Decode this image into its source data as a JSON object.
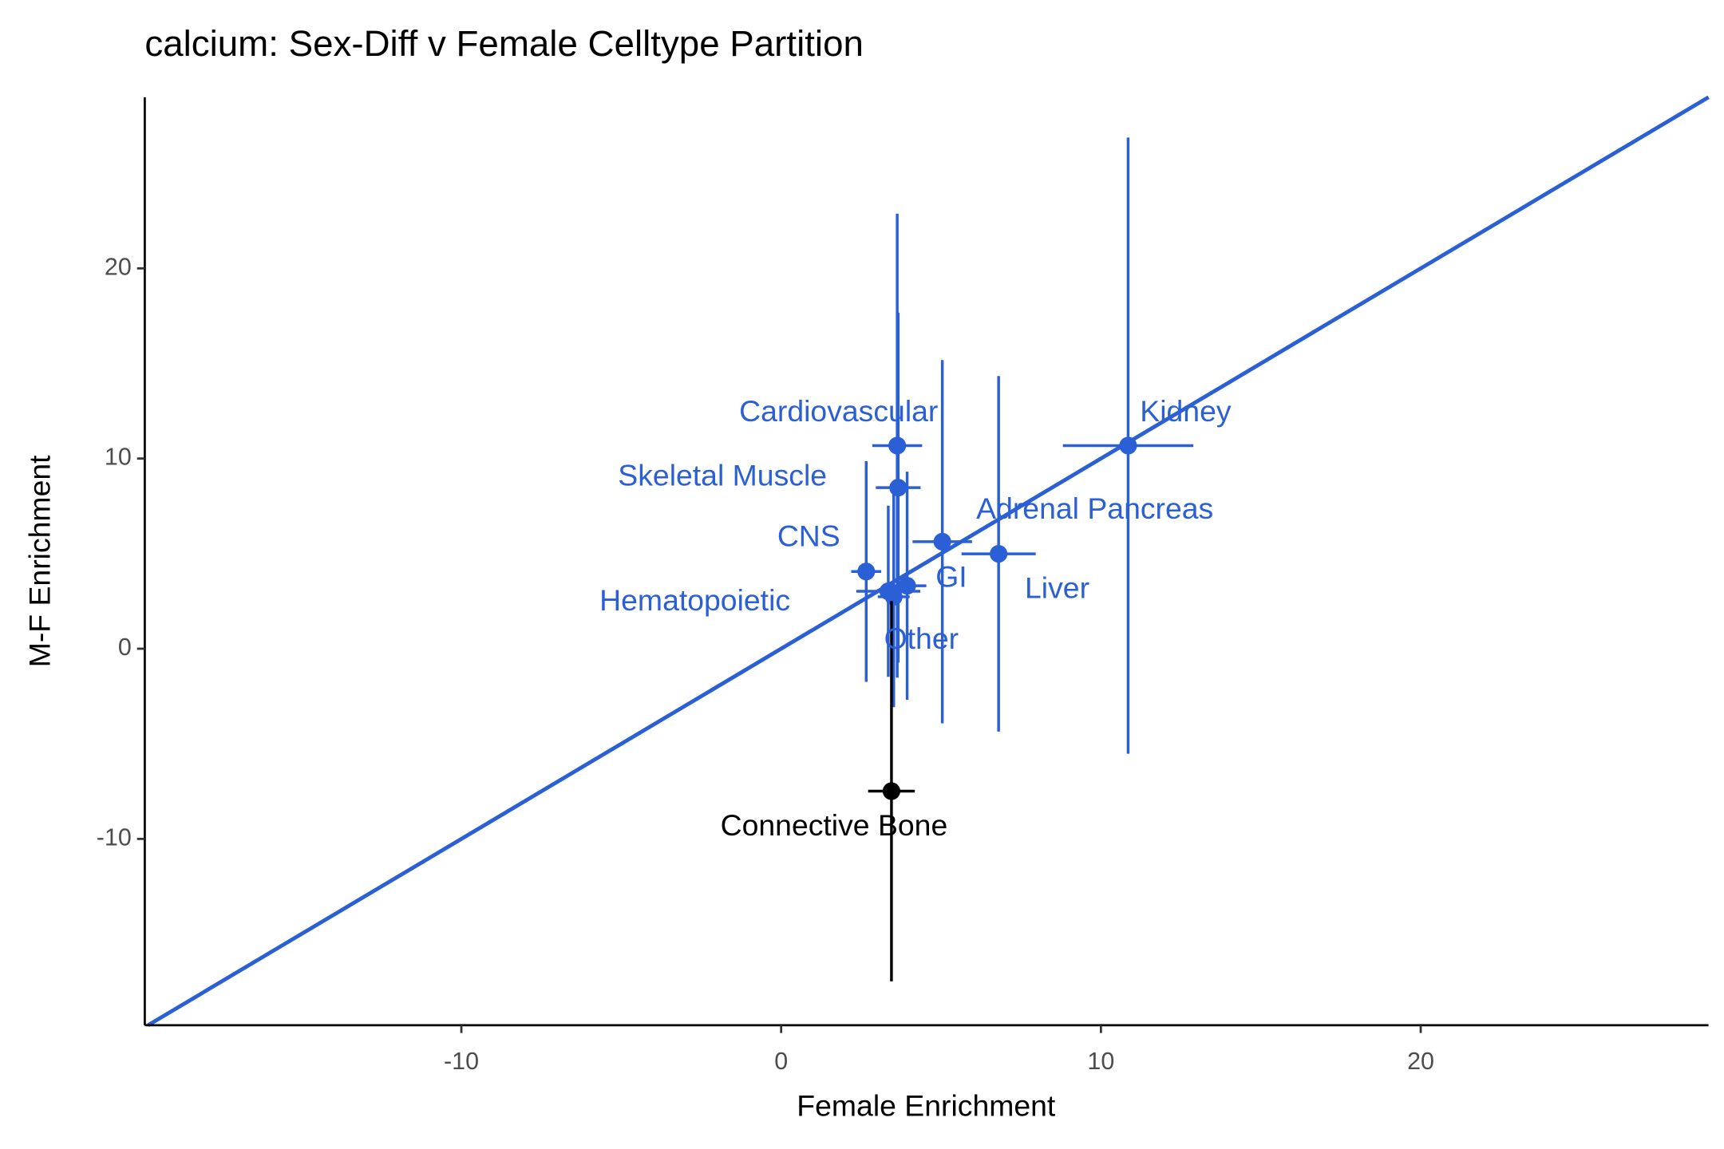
{
  "chart_data": {
    "type": "scatter",
    "title": "calcium: Sex-Diff v Female Celltype Partition",
    "x_label": "Female Enrichment",
    "y_label": "M-F Enrichment",
    "labels": [
      "Cardiovascular",
      "Kidney",
      "Skeletal Muscle",
      "Adrenal Pancreas",
      "CNS",
      "GI",
      "Liver",
      "Hematopoietic",
      "Other",
      "Connective Bone"
    ],
    "x": [
      3.63,
      10.85,
      3.66,
      5.04,
      2.66,
      3.94,
      6.8,
      3.35,
      3.52,
      3.45
    ],
    "values": [
      10.68,
      10.68,
      8.47,
      5.63,
      4.06,
      3.31,
      4.99,
      3.02,
      2.73,
      -7.49
    ],
    "xerr": [
      0.78,
      2.04,
      0.7,
      0.93,
      0.47,
      0.6,
      1.16,
      1.0,
      0.5,
      0.73
    ],
    "yerr": [
      12.2,
      16.2,
      9.2,
      9.55,
      5.8,
      6.0,
      9.35,
      4.5,
      5.8,
      10.0
    ],
    "colors": [
      "#2a5fd6",
      "#2a5fd6",
      "#2a5fd6",
      "#2a5fd6",
      "#2a5fd6",
      "#2a5fd6",
      "#2a5fd6",
      "#2a5fd6",
      "#2a5fd6",
      "#000000"
    ],
    "identity_line_color": "#2a5fd6",
    "xlim": [
      -19.9,
      29.0
    ],
    "ylim": [
      -19.8,
      29.0
    ],
    "xticks": [
      -10,
      0,
      10,
      20
    ],
    "yticks": [
      -10,
      0,
      10,
      20
    ],
    "grid": false
  }
}
